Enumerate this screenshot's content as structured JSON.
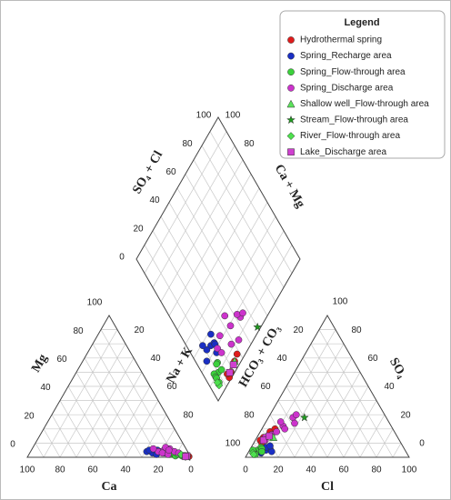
{
  "chart_data": {
    "type": "piper",
    "legend_title": "Legend",
    "labels": {
      "cation_base": "Ca",
      "cation_left": "Mg",
      "cation_right": "Na + K",
      "anion_base": "Cl",
      "anion_right": "SO₄",
      "anion_left": "HCO₃ + CO₃",
      "diamond_left": "SO₄ + Cl",
      "diamond_right": "Ca + Mg"
    },
    "ticks": {
      "cation_base": [
        100,
        80,
        60,
        40,
        20,
        0
      ],
      "cation_left": [
        0,
        20,
        40,
        60,
        80,
        100
      ],
      "cation_right": [
        20,
        40,
        60,
        80
      ],
      "anion_base": [
        0,
        20,
        40,
        60,
        80,
        100
      ],
      "anion_right": [
        0,
        20,
        40,
        60,
        80,
        100
      ],
      "anion_left": [
        20,
        40,
        60,
        80,
        100
      ],
      "diamond_left": [
        0,
        20,
        40,
        60,
        80,
        100
      ],
      "diamond_right": [
        100,
        80
      ]
    },
    "grid": [
      10,
      20,
      30,
      40,
      50,
      60,
      70,
      80,
      90
    ],
    "sample_fields": [
      "Ca",
      "Mg",
      "Cl",
      "SO4"
    ],
    "series": [
      {
        "name": "Hydrothermal spring",
        "color": "#e01b1b",
        "marker": "circle",
        "samples": [
          [
            3,
            1,
            6,
            18
          ],
          [
            2,
            0.5,
            4,
            14
          ],
          [
            4,
            1,
            8,
            20
          ],
          [
            1,
            0.5,
            3,
            12
          ],
          [
            3,
            1,
            5,
            10
          ]
        ]
      },
      {
        "name": "Spring_Recharge area",
        "color": "#1a2fc4",
        "marker": "circle",
        "samples": [
          [
            20,
            4,
            10,
            5
          ],
          [
            22,
            3,
            8,
            3
          ],
          [
            18,
            5,
            12,
            6
          ],
          [
            25,
            4,
            6,
            4
          ],
          [
            15,
            3,
            9,
            7
          ],
          [
            20,
            2,
            14,
            4
          ],
          [
            17,
            4,
            4,
            3
          ],
          [
            23,
            5,
            11,
            8
          ]
        ]
      },
      {
        "name": "Spring_Flow-through area",
        "color": "#3bd13b",
        "marker": "circle",
        "samples": [
          [
            8,
            2,
            5,
            5
          ],
          [
            10,
            2,
            4,
            3
          ],
          [
            6,
            3,
            6,
            7
          ],
          [
            9,
            1,
            3,
            4
          ],
          [
            12,
            2,
            7,
            6
          ],
          [
            7,
            2,
            5,
            2
          ],
          [
            11,
            3,
            8,
            4
          ],
          [
            5,
            1,
            2,
            5
          ]
        ]
      },
      {
        "name": "Spring_Discharge area",
        "color": "#cc33cc",
        "marker": "circle",
        "samples": [
          [
            14,
            5,
            12,
            22
          ],
          [
            10,
            6,
            15,
            28
          ],
          [
            18,
            4,
            8,
            16
          ],
          [
            12,
            7,
            18,
            24
          ],
          [
            8,
            4,
            10,
            18
          ],
          [
            16,
            3,
            6,
            12
          ],
          [
            20,
            6,
            14,
            20
          ],
          [
            6,
            3,
            9,
            25
          ],
          [
            13,
            2,
            5,
            14
          ],
          [
            11,
            5,
            16,
            30
          ]
        ]
      },
      {
        "name": "Shallow well_Flow-through area",
        "color": "#5be35b",
        "marker": "triangle",
        "samples": [
          [
            3,
            1,
            10,
            14
          ]
        ]
      },
      {
        "name": "Stream_Flow-through area",
        "color": "#1f9a1f",
        "marker": "star",
        "samples": [
          [
            2,
            0,
            22,
            28
          ]
        ]
      },
      {
        "name": "River_Flow-through area",
        "color": "#4ee04e",
        "marker": "diamond",
        "samples": [
          [
            4,
            1,
            3,
            3
          ],
          [
            5,
            2,
            4,
            2
          ]
        ]
      },
      {
        "name": "Lake_Discharge area",
        "color": "#d040d0",
        "marker": "square",
        "samples": [
          [
            2,
            1,
            5,
            12
          ],
          [
            3,
            0.5,
            7,
            15
          ]
        ]
      }
    ]
  }
}
